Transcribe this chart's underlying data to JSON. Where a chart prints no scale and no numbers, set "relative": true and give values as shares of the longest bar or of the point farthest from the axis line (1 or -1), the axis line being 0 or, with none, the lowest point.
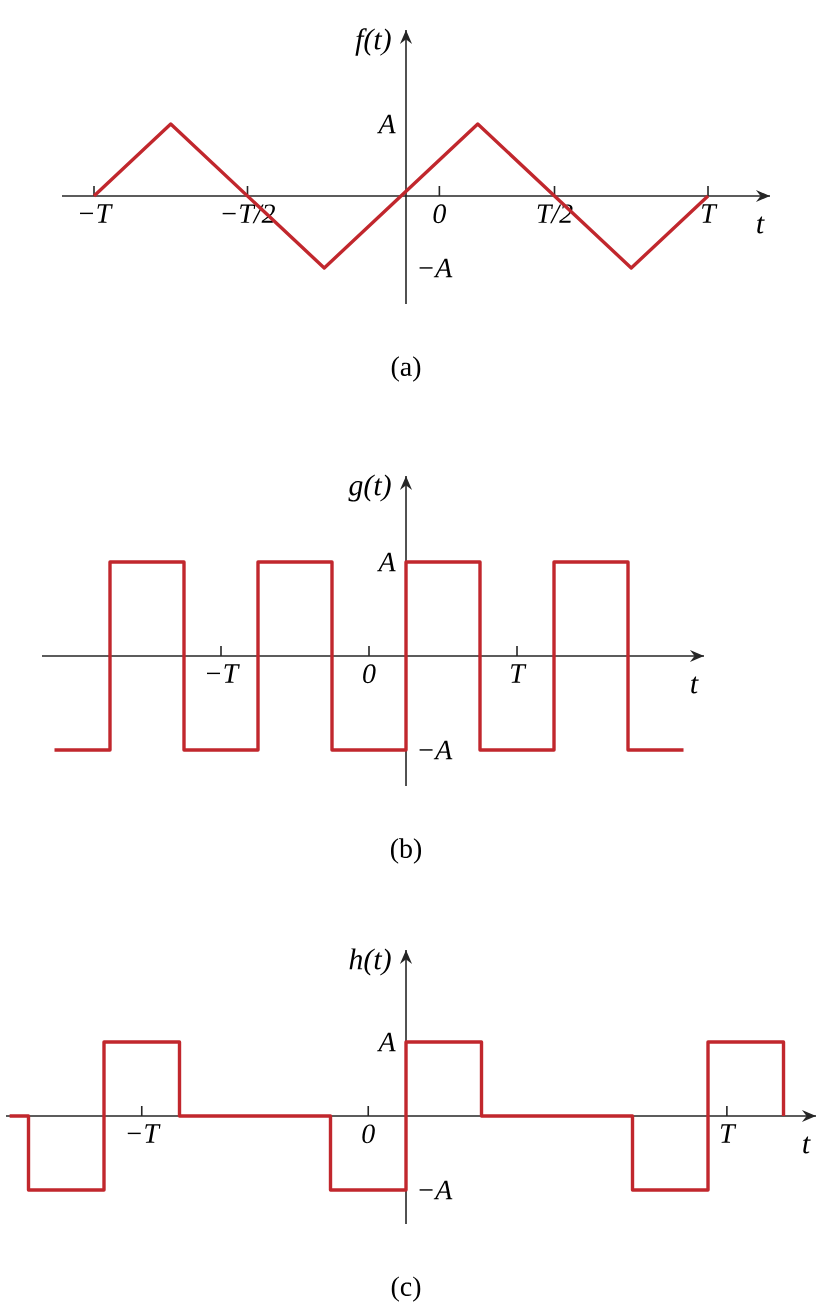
{
  "chart_data": [
    {
      "type": "line",
      "relative": true,
      "title": "(a)",
      "xlabel": "t",
      "ylabel": "f(t)",
      "annotations": [
        "A",
        "−A"
      ],
      "categories": [
        "−T",
        null,
        null,
        null,
        "−T/2",
        null,
        null,
        null,
        null,
        "0",
        null,
        null,
        "T/2",
        null,
        null,
        null,
        "T"
      ],
      "values": [
        0,
        0.5,
        1,
        0.5,
        0,
        -0.5,
        -1,
        -0.5,
        0,
        0.5,
        1,
        0.5,
        0,
        -0.5,
        -1,
        -0.5,
        0
      ],
      "color": "#c1272d"
    },
    {
      "type": "step",
      "relative": true,
      "title": "(b)",
      "xlabel": "t",
      "ylabel": "g(t)",
      "annotations": [
        "A",
        "−A"
      ],
      "categories": [
        null,
        null,
        null,
        null,
        null,
        null,
        null,
        null,
        null,
        "−T",
        null,
        null,
        null,
        null,
        null,
        null,
        null,
        "0",
        null,
        null,
        null,
        null,
        null,
        null,
        null,
        "T",
        null,
        null,
        null,
        null,
        null,
        null,
        null,
        null,
        null
      ],
      "values": [
        -1,
        -1,
        -1,
        1,
        1,
        1,
        1,
        -1,
        -1,
        -1,
        -1,
        1,
        1,
        1,
        1,
        -1,
        -1,
        -1,
        -1,
        1,
        1,
        1,
        1,
        -1,
        -1,
        -1,
        -1,
        1,
        1,
        1,
        1,
        -1,
        -1,
        -1,
        -1
      ],
      "color": "#c1272d"
    },
    {
      "type": "step",
      "relative": true,
      "title": "(c)",
      "xlabel": "t",
      "ylabel": "h(t)",
      "annotations": [
        "A",
        "−A"
      ],
      "categories": [
        null,
        null,
        null,
        null,
        null,
        null,
        null,
        "−T",
        null,
        null,
        null,
        null,
        null,
        null,
        null,
        null,
        null,
        null,
        null,
        "0",
        null,
        null,
        null,
        null,
        null,
        null,
        null,
        null,
        null,
        null,
        null,
        null,
        null,
        null,
        null,
        null,
        null,
        null,
        "T",
        null,
        null,
        null
      ],
      "values": [
        0,
        -1,
        -1,
        -1,
        -1,
        1,
        1,
        1,
        1,
        0,
        0,
        0,
        0,
        0,
        0,
        0,
        0,
        -1,
        -1,
        -1,
        -1,
        1,
        1,
        1,
        1,
        0,
        0,
        0,
        0,
        0,
        0,
        0,
        0,
        -1,
        -1,
        -1,
        -1,
        1,
        1,
        1,
        1,
        0
      ],
      "color": "#c1272d"
    }
  ]
}
